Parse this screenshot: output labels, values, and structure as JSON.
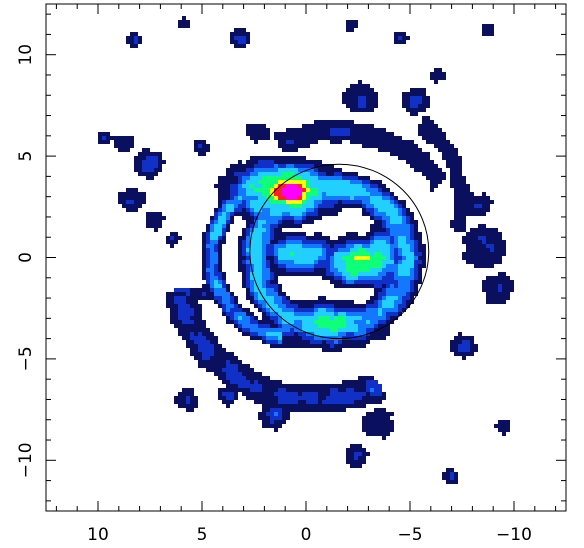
{
  "chart_data": {
    "type": "heatmap",
    "title": "",
    "xlabel": "",
    "ylabel": "",
    "xlim": [
      12.5,
      -12.5
    ],
    "ylim": [
      -12.5,
      12.5
    ],
    "x_reversed": true,
    "x_ticks": [
      10,
      5,
      0,
      -5,
      -10
    ],
    "y_ticks": [
      10,
      5,
      0,
      -5,
      -10
    ],
    "x_tick_labels": [
      "10",
      "5",
      "0",
      "−5",
      "−10"
    ],
    "y_tick_labels": [
      "10",
      "5",
      "0",
      "−5",
      "−10"
    ],
    "colormap": [
      "#0a0f5e",
      "#1030c8",
      "#1478ff",
      "#22d0ff",
      "#10ff78",
      "#ffff00",
      "#ff2020",
      "#ff00ff"
    ],
    "reference_circle": {
      "cx": -1.6,
      "cy": 0.3,
      "r": 4.3,
      "color": "#000000"
    },
    "features": [
      {
        "name": "peak",
        "x": 0.7,
        "y": 3.3,
        "level": 1.0,
        "sx": 0.9,
        "sy": 0.5
      },
      {
        "name": "peak-halo",
        "x": 1.1,
        "y": 3.3,
        "level": 0.55,
        "sx": 1.6,
        "sy": 0.9
      },
      {
        "name": "east-clump",
        "x": -2.5,
        "y": -0.2,
        "level": 0.5,
        "sx": 1.0,
        "sy": 0.7
      },
      {
        "name": "east-clump-2",
        "x": -3.6,
        "y": 0.0,
        "level": 0.42,
        "sx": 0.6,
        "sy": 0.9
      },
      {
        "name": "south-clump",
        "x": -1.0,
        "y": -3.3,
        "level": 0.4,
        "sx": 1.6,
        "sy": 0.7
      },
      {
        "name": "center-bar",
        "x": 0.3,
        "y": 0.2,
        "level": 0.35,
        "sx": 1.2,
        "sy": 0.6
      }
    ],
    "arcs": [
      {
        "name": "inner-ring",
        "cx": -1.2,
        "cy": 0.0,
        "r": 3.6,
        "ry": 3.5,
        "start": 0,
        "end": 360,
        "width": 0.5,
        "level": 0.3
      },
      {
        "name": "west-arc",
        "cx": 0.8,
        "cy": 0.0,
        "r": 3.7,
        "ry": 3.9,
        "start": 95,
        "end": 265,
        "width": 0.32,
        "level": 0.26
      },
      {
        "name": "south-spiral",
        "cx": -0.5,
        "cy": -1.0,
        "r": 6.5,
        "ry": 6.0,
        "start": 185,
        "end": 300,
        "width": 0.55,
        "level": 0.16
      },
      {
        "name": "north-spiral",
        "cx": -1.5,
        "cy": -0.5,
        "r": 6.3,
        "ry": 6.7,
        "start": 40,
        "end": 115,
        "width": 0.45,
        "level": 0.13
      },
      {
        "name": "east-outer-arc",
        "cx": -4.0,
        "cy": 2.5,
        "r": 3.5,
        "ry": 4.5,
        "start": -20,
        "end": 70,
        "width": 0.35,
        "level": 0.12
      }
    ],
    "blobs": [
      {
        "x": -8.5,
        "y": 0.5,
        "r": 1.3,
        "level": 0.1
      },
      {
        "x": -8.3,
        "y": 2.6,
        "r": 0.8,
        "level": 0.1
      },
      {
        "x": -9.2,
        "y": -1.6,
        "r": 1.0,
        "level": 0.1
      },
      {
        "x": -7.6,
        "y": -4.4,
        "r": 0.8,
        "level": 0.1
      },
      {
        "x": 8.4,
        "y": 2.8,
        "r": 0.8,
        "level": 0.1
      },
      {
        "x": 7.3,
        "y": 1.8,
        "r": 0.7,
        "level": 0.09
      },
      {
        "x": 7.5,
        "y": 4.6,
        "r": 0.9,
        "level": 0.1
      },
      {
        "x": 8.7,
        "y": 5.6,
        "r": 0.6,
        "level": 0.1
      },
      {
        "x": 6.4,
        "y": 0.9,
        "r": 0.5,
        "level": 0.09
      },
      {
        "x": 2.3,
        "y": 6.2,
        "r": 0.7,
        "level": 0.1
      },
      {
        "x": -2.6,
        "y": 7.9,
        "r": 1.0,
        "level": 0.1
      },
      {
        "x": -5.3,
        "y": 7.7,
        "r": 0.8,
        "level": 0.1
      },
      {
        "x": -6.3,
        "y": 9.0,
        "r": 0.5,
        "level": 0.09
      },
      {
        "x": 8.2,
        "y": 10.7,
        "r": 0.5,
        "level": 0.09
      },
      {
        "x": 3.2,
        "y": 10.8,
        "r": 0.6,
        "level": 0.1
      },
      {
        "x": 5.9,
        "y": 11.5,
        "r": 0.4,
        "level": 0.09
      },
      {
        "x": -2.2,
        "y": 11.4,
        "r": 0.5,
        "level": 0.09
      },
      {
        "x": -8.8,
        "y": 11.2,
        "r": 0.5,
        "level": 0.09
      },
      {
        "x": -4.6,
        "y": 10.8,
        "r": 0.5,
        "level": 0.09
      },
      {
        "x": 9.7,
        "y": 5.9,
        "r": 0.5,
        "level": 0.09
      },
      {
        "x": -3.5,
        "y": -8.2,
        "r": 0.9,
        "level": 0.1
      },
      {
        "x": -2.5,
        "y": -9.8,
        "r": 0.7,
        "level": 0.1
      },
      {
        "x": 5.7,
        "y": -7.0,
        "r": 0.7,
        "level": 0.1
      },
      {
        "x": -7.0,
        "y": -10.8,
        "r": 0.5,
        "level": 0.09
      },
      {
        "x": -9.5,
        "y": -8.3,
        "r": 0.5,
        "level": 0.09
      },
      {
        "x": 1.5,
        "y": -7.8,
        "r": 0.8,
        "level": 0.11
      },
      {
        "x": 3.8,
        "y": -6.8,
        "r": 0.6,
        "level": 0.1
      },
      {
        "x": 3.4,
        "y": -2.8,
        "r": 0.6,
        "level": 0.1
      },
      {
        "x": 6.1,
        "y": -2.2,
        "r": 0.5,
        "level": 0.09
      },
      {
        "x": 4.9,
        "y": -1.8,
        "r": 0.5,
        "level": 0.09
      },
      {
        "x": 4.0,
        "y": 3.6,
        "r": 0.5,
        "level": 0.09
      },
      {
        "x": 5.0,
        "y": 5.4,
        "r": 0.5,
        "level": 0.09
      }
    ]
  }
}
